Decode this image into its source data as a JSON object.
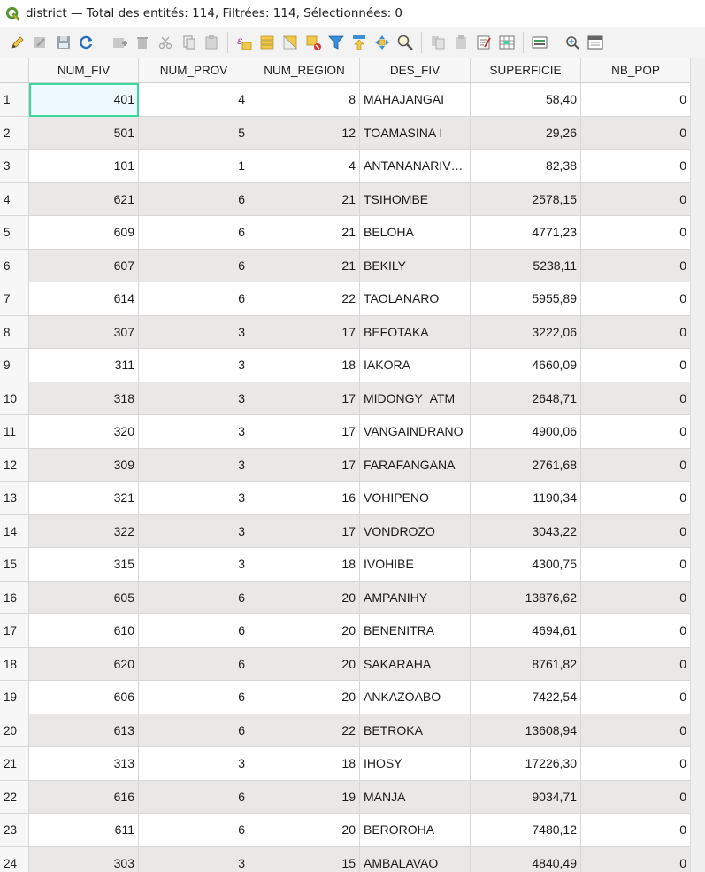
{
  "window": {
    "title": "district — Total des entités: 114, Filtrées: 114, Sélectionnées: 0"
  },
  "toolbar": {
    "buttons": [
      "edit-pencil-icon",
      "multi-edit-icon",
      "save-edits-icon",
      "reload-icon",
      "sep",
      "add-feature-icon",
      "delete-feature-icon",
      "cut-icon",
      "copy-icon",
      "paste-icon",
      "sep",
      "expression-select-icon",
      "select-all-icon",
      "invert-selection-icon",
      "deselect-icon",
      "filter-icon",
      "move-top-icon",
      "pan-to-icon",
      "zoom-to-icon",
      "sep",
      "copy-cells-icon",
      "paste-cells-icon",
      "field-calculator-icon",
      "conditional-format-icon",
      "sep",
      "attribute-form-icon",
      "sep",
      "dock-icon",
      "actions-icon"
    ]
  },
  "table": {
    "columns": [
      "NUM_FIV",
      "NUM_PROV",
      "NUM_REGION",
      "DES_FIV",
      "SUPERFICIE",
      "NB_POP"
    ],
    "rows": [
      {
        "id": "1",
        "c": [
          "401",
          "4",
          "8",
          "MAHAJANGAI",
          "58,40",
          "0"
        ]
      },
      {
        "id": "2",
        "c": [
          "501",
          "5",
          "12",
          "TOAMASINA I",
          "29,26",
          "0"
        ]
      },
      {
        "id": "3",
        "c": [
          "101",
          "1",
          "4",
          "ANTANANARIV…",
          "82,38",
          "0"
        ]
      },
      {
        "id": "4",
        "c": [
          "621",
          "6",
          "21",
          "TSIHOMBE",
          "2578,15",
          "0"
        ]
      },
      {
        "id": "5",
        "c": [
          "609",
          "6",
          "21",
          "BELOHA",
          "4771,23",
          "0"
        ]
      },
      {
        "id": "6",
        "c": [
          "607",
          "6",
          "21",
          "BEKILY",
          "5238,11",
          "0"
        ]
      },
      {
        "id": "7",
        "c": [
          "614",
          "6",
          "22",
          "TAOLANARO",
          "5955,89",
          "0"
        ]
      },
      {
        "id": "8",
        "c": [
          "307",
          "3",
          "17",
          "BEFOTAKA",
          "3222,06",
          "0"
        ]
      },
      {
        "id": "9",
        "c": [
          "311",
          "3",
          "18",
          "IAKORA",
          "4660,09",
          "0"
        ]
      },
      {
        "id": "10",
        "c": [
          "318",
          "3",
          "17",
          "MIDONGY_ATM",
          "2648,71",
          "0"
        ]
      },
      {
        "id": "11",
        "c": [
          "320",
          "3",
          "17",
          "VANGAINDRANO",
          "4900,06",
          "0"
        ]
      },
      {
        "id": "12",
        "c": [
          "309",
          "3",
          "17",
          "FARAFANGANA",
          "2761,68",
          "0"
        ]
      },
      {
        "id": "13",
        "c": [
          "321",
          "3",
          "16",
          "VOHIPENO",
          "1190,34",
          "0"
        ]
      },
      {
        "id": "14",
        "c": [
          "322",
          "3",
          "17",
          "VONDROZO",
          "3043,22",
          "0"
        ]
      },
      {
        "id": "15",
        "c": [
          "315",
          "3",
          "18",
          "IVOHIBE",
          "4300,75",
          "0"
        ]
      },
      {
        "id": "16",
        "c": [
          "605",
          "6",
          "20",
          "AMPANIHY",
          "13876,62",
          "0"
        ]
      },
      {
        "id": "17",
        "c": [
          "610",
          "6",
          "20",
          "BENENITRA",
          "4694,61",
          "0"
        ]
      },
      {
        "id": "18",
        "c": [
          "620",
          "6",
          "20",
          "SAKARAHA",
          "8761,82",
          "0"
        ]
      },
      {
        "id": "19",
        "c": [
          "606",
          "6",
          "20",
          "ANKAZOABO",
          "7422,54",
          "0"
        ]
      },
      {
        "id": "20",
        "c": [
          "613",
          "6",
          "22",
          "BETROKA",
          "13608,94",
          "0"
        ]
      },
      {
        "id": "21",
        "c": [
          "313",
          "3",
          "18",
          "IHOSY",
          "17226,30",
          "0"
        ]
      },
      {
        "id": "22",
        "c": [
          "616",
          "6",
          "19",
          "MANJA",
          "9034,71",
          "0"
        ]
      },
      {
        "id": "23",
        "c": [
          "611",
          "6",
          "20",
          "BEROROHA",
          "7480,12",
          "0"
        ]
      },
      {
        "id": "24",
        "c": [
          "303",
          "3",
          "15",
          "AMBALAVAO",
          "4840,49",
          "0"
        ]
      }
    ]
  },
  "colors": {
    "alt_row": "#e9e8e6",
    "selection_border": "#3ad99b",
    "qgis_green": "#589632"
  }
}
